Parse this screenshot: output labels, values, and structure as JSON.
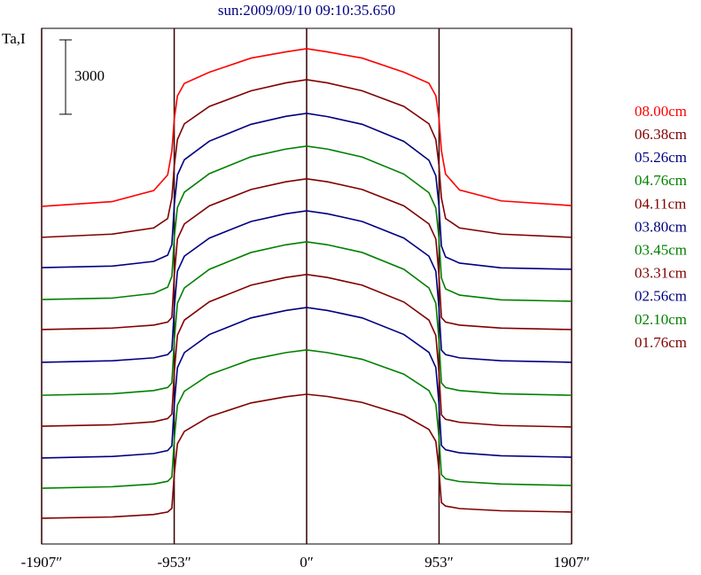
{
  "chart_data": {
    "type": "line",
    "title": "sun:2009/09/10 09:10:35.650",
    "y_label": "Ta,I",
    "scale_bar": 3000,
    "x": [
      -1907,
      -1400,
      -1100,
      -1000,
      -970,
      -953,
      -930,
      -880,
      -700,
      -400,
      -150,
      0,
      150,
      400,
      700,
      880,
      930,
      953,
      970,
      1000,
      1100,
      1400,
      1907
    ],
    "xlim": [
      -1907,
      1907
    ],
    "xticks": [
      {
        "value": -1907,
        "label": "-1907″"
      },
      {
        "value": -953,
        "label": "-953″"
      },
      {
        "value": 0,
        "label": "0″"
      },
      {
        "value": 953,
        "label": "953″"
      },
      {
        "value": 1907,
        "label": "1907″"
      }
    ],
    "ylim": [
      0,
      20800
    ],
    "grid": true,
    "series": [
      {
        "name": "08.00cm",
        "color": "#ff0000",
        "values": [
          13620,
          13810,
          14260,
          14890,
          15850,
          17120,
          18070,
          18580,
          19030,
          19600,
          19850,
          19980,
          19850,
          19600,
          19030,
          18590,
          18080,
          17130,
          15870,
          14920,
          14280,
          13840,
          13650
        ]
      },
      {
        "name": "06.38cm",
        "color": "#800000",
        "values": [
          12370,
          12500,
          12750,
          13130,
          13960,
          15230,
          16310,
          16950,
          17650,
          18280,
          18600,
          18730,
          18600,
          18280,
          17650,
          16950,
          16310,
          15230,
          13960,
          13130,
          12750,
          12500,
          12370
        ]
      },
      {
        "name": "05.26cm",
        "color": "#000080",
        "values": [
          11150,
          11210,
          11400,
          11650,
          12080,
          13640,
          14880,
          15500,
          16250,
          16930,
          17250,
          17370,
          17240,
          16930,
          16240,
          15480,
          14850,
          13600,
          12020,
          11580,
          11330,
          11140,
          11080
        ]
      },
      {
        "name": "04.76cm",
        "color": "#008000",
        "values": [
          9860,
          9920,
          10110,
          10360,
          10790,
          12340,
          13570,
          14190,
          14940,
          15620,
          15930,
          16050,
          15930,
          15610,
          14920,
          14170,
          13550,
          12290,
          10730,
          10290,
          10040,
          9850,
          9790
        ]
      },
      {
        "name": "04.11cm",
        "color": "#800000",
        "values": [
          8650,
          8710,
          8830,
          8950,
          9140,
          10780,
          12300,
          12910,
          13640,
          14300,
          14610,
          14730,
          14610,
          14300,
          13640,
          12910,
          12300,
          10780,
          9140,
          8950,
          8830,
          8710,
          8650
        ]
      },
      {
        "name": "03.80cm",
        "color": "#000080",
        "values": [
          7330,
          7390,
          7510,
          7640,
          7820,
          9470,
          11000,
          11610,
          12340,
          13010,
          13320,
          13440,
          13320,
          13010,
          12340,
          11610,
          11000,
          9470,
          7820,
          7640,
          7510,
          7390,
          7330
        ]
      },
      {
        "name": "03.45cm",
        "color": "#008000",
        "values": [
          6000,
          6060,
          6190,
          6310,
          6500,
          8170,
          9710,
          10330,
          11080,
          11760,
          12070,
          12190,
          12070,
          11760,
          11080,
          10330,
          9710,
          8170,
          6500,
          6310,
          6190,
          6060,
          6000
        ]
      },
      {
        "name": "03.31cm",
        "color": "#800000",
        "values": [
          4750,
          4810,
          4930,
          5060,
          5240,
          6890,
          8420,
          9030,
          9770,
          10440,
          10750,
          10870,
          10750,
          10440,
          9760,
          9030,
          8410,
          6870,
          5210,
          5030,
          4910,
          4780,
          4720
        ]
      },
      {
        "name": "02.56cm",
        "color": "#000080",
        "values": [
          3470,
          3530,
          3650,
          3770,
          3960,
          5590,
          7110,
          7720,
          8450,
          9120,
          9420,
          9540,
          9420,
          9120,
          8450,
          7730,
          7120,
          5610,
          3980,
          3800,
          3680,
          3560,
          3500
        ]
      },
      {
        "name": "02.10cm",
        "color": "#008000",
        "values": [
          2250,
          2310,
          2420,
          2530,
          2700,
          4200,
          5600,
          6160,
          6830,
          7440,
          7720,
          7830,
          7720,
          7450,
          6850,
          6190,
          5640,
          4280,
          2800,
          2630,
          2520,
          2420,
          2360
        ]
      },
      {
        "name": "01.76cm",
        "color": "#800000",
        "values": [
          1040,
          1090,
          1190,
          1290,
          1440,
          2790,
          4040,
          4540,
          5140,
          5690,
          5940,
          6040,
          5950,
          5710,
          5190,
          4620,
          4140,
          2950,
          1670,
          1530,
          1430,
          1340,
          1290
        ]
      }
    ]
  }
}
